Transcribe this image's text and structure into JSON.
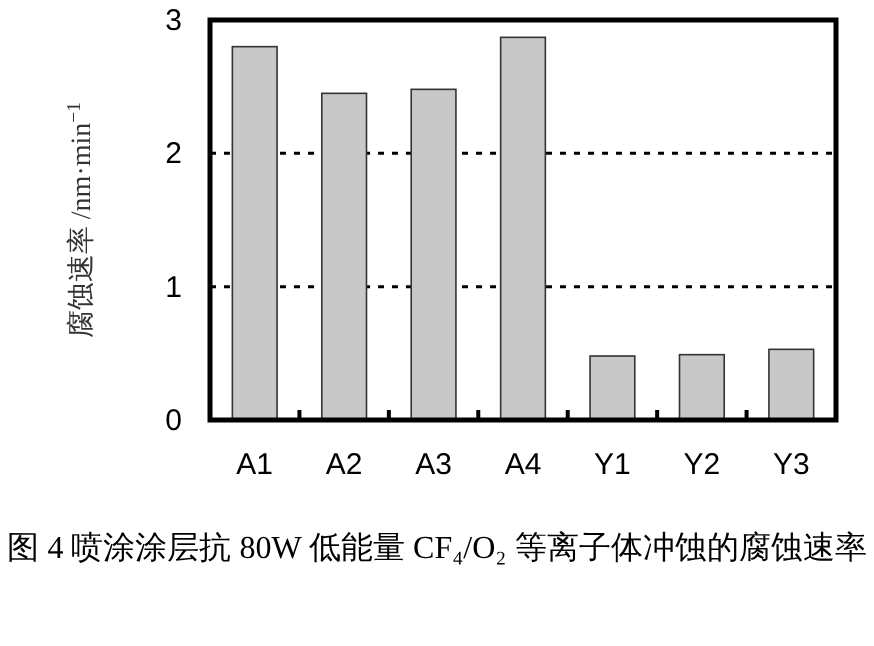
{
  "chart_data": {
    "type": "bar",
    "categories": [
      "A1",
      "A2",
      "A3",
      "A4",
      "Y1",
      "Y2",
      "Y3"
    ],
    "values": [
      2.8,
      2.45,
      2.48,
      2.87,
      0.48,
      0.49,
      0.53
    ],
    "color": "#c8c8c8",
    "ylabel": "腐蚀速率 /nm·min$^{−1}$",
    "ylim": [
      0,
      3
    ],
    "yticks": [
      0,
      1,
      2,
      3
    ],
    "grid": "y",
    "annotations": [
      "图 4 喷涂涂层抗 80W 低能量 CF₄/O₂ 等离子体冲蚀的腐蚀速率"
    ]
  }
}
